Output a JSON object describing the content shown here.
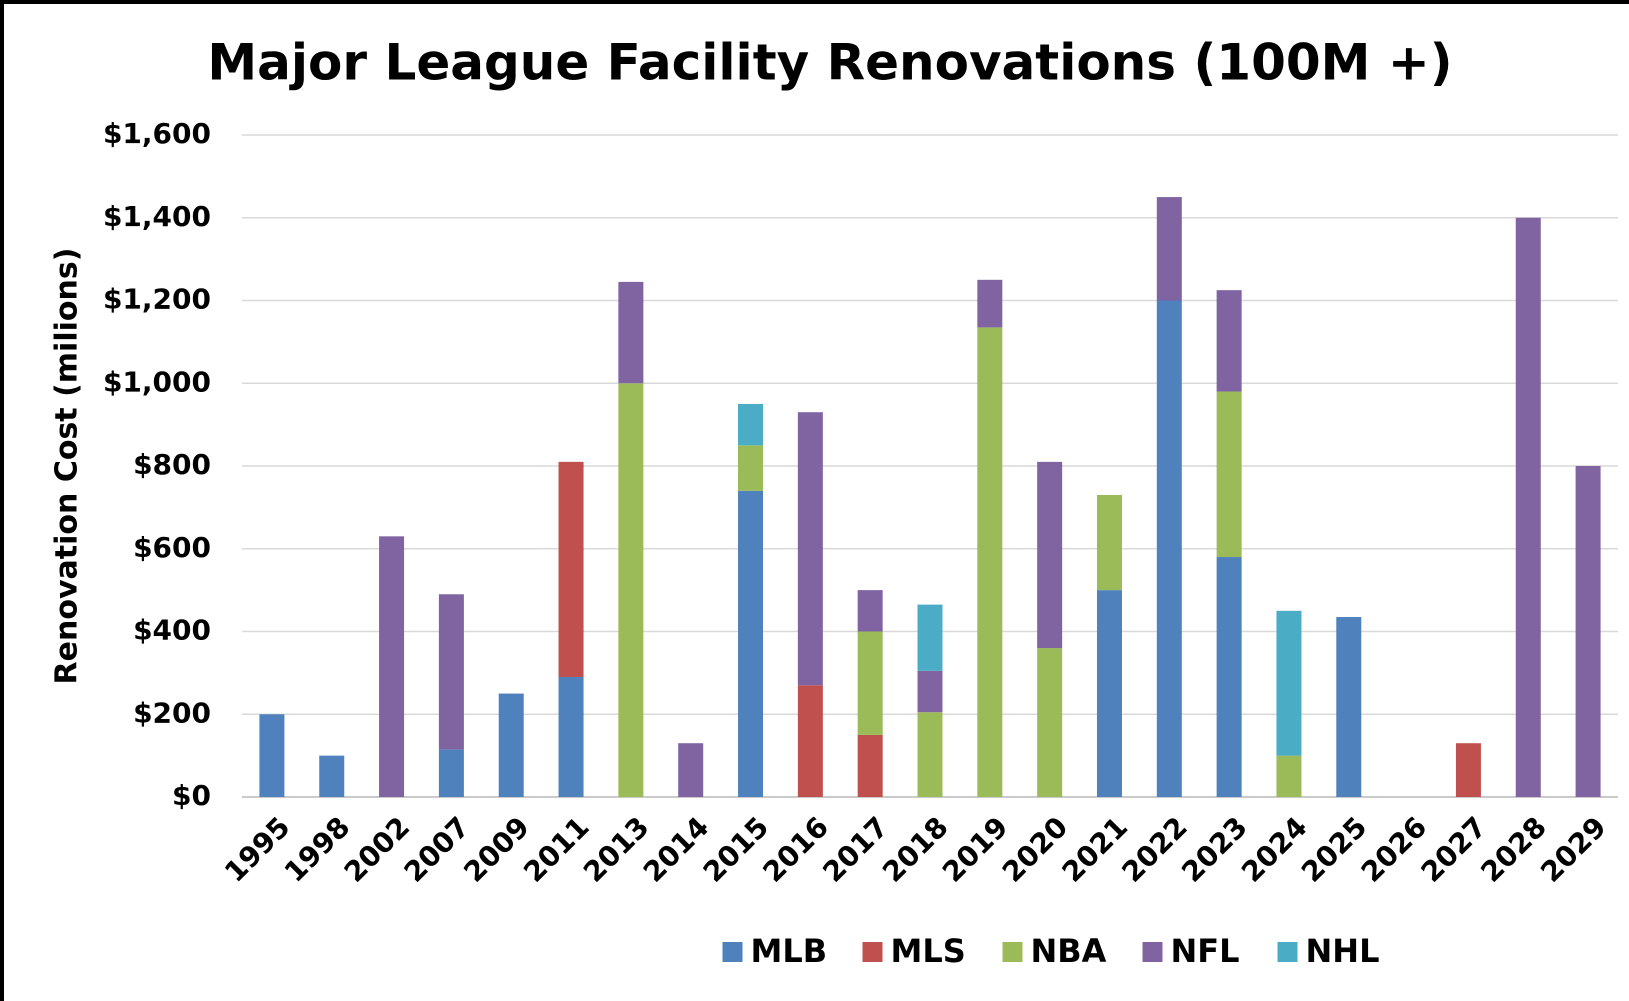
{
  "chart_data": {
    "type": "stacked_bar",
    "title": "Major League Facility Renovations (100M +)",
    "y_label": "Renovation Cost (milions)",
    "categories": [
      "1995",
      "1998",
      "2002",
      "2007",
      "2009",
      "2011",
      "2013",
      "2014",
      "2015",
      "2016",
      "2017",
      "2018",
      "2019",
      "2020",
      "2021",
      "2022",
      "2023",
      "2024",
      "2025",
      "2026",
      "2027",
      "2028",
      "2029"
    ],
    "series": [
      {
        "name": "MLB",
        "color": "#4f81bd",
        "values": [
          200,
          100,
          null,
          115,
          250,
          290,
          null,
          null,
          740,
          null,
          null,
          null,
          null,
          null,
          500,
          1200,
          580,
          null,
          435,
          null,
          null,
          null,
          null
        ]
      },
      {
        "name": "MLS",
        "color": "#c0504d",
        "values": [
          null,
          null,
          null,
          null,
          null,
          520,
          null,
          null,
          null,
          270,
          150,
          null,
          null,
          null,
          null,
          null,
          null,
          null,
          null,
          null,
          130,
          null,
          null
        ]
      },
      {
        "name": "NBA",
        "color": "#9bbb59",
        "values": [
          null,
          null,
          null,
          null,
          null,
          null,
          1000,
          null,
          110,
          null,
          250,
          205,
          1135,
          360,
          230,
          null,
          400,
          100,
          null,
          null,
          null,
          null,
          null
        ]
      },
      {
        "name": "NFL",
        "color": "#8064a2",
        "values": [
          null,
          null,
          630,
          375,
          null,
          null,
          245,
          130,
          null,
          660,
          100,
          100,
          115,
          450,
          null,
          250,
          245,
          null,
          null,
          null,
          null,
          1400,
          800
        ]
      },
      {
        "name": "NHL",
        "color": "#4bacc6",
        "values": [
          null,
          null,
          null,
          null,
          null,
          null,
          null,
          null,
          100,
          null,
          null,
          160,
          null,
          null,
          null,
          null,
          null,
          350,
          null,
          null,
          null,
          null,
          null
        ]
      }
    ],
    "ylim": [
      0,
      1600
    ],
    "yticks": [
      {
        "value": 0,
        "label": "$0"
      },
      {
        "value": 200,
        "label": "$200"
      },
      {
        "value": 400,
        "label": "$400"
      },
      {
        "value": 600,
        "label": "$600"
      },
      {
        "value": 800,
        "label": "$800"
      },
      {
        "value": 1000,
        "label": "$1,000"
      },
      {
        "value": 1200,
        "label": "$1,200"
      },
      {
        "value": 1400,
        "label": "$1,400"
      },
      {
        "value": 1600,
        "label": "$1,600"
      }
    ],
    "grid": true,
    "legend": "bottom"
  }
}
